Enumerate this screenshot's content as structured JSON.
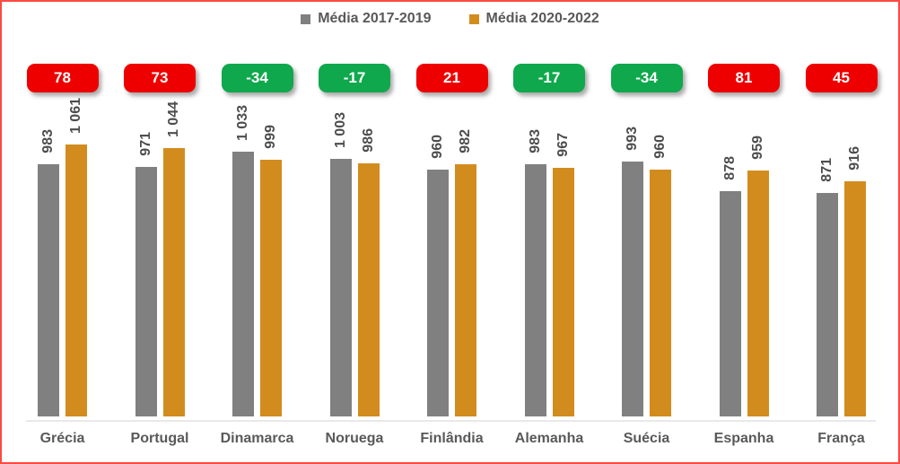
{
  "frame": {
    "border_color": "#fb4a42",
    "background": "#ffffff"
  },
  "legend": {
    "items": [
      {
        "label": "Média 2017-2019",
        "color": "#808080"
      },
      {
        "label": "Média 2020-2022",
        "color": "#d28c1e"
      }
    ]
  },
  "chart_data": {
    "type": "bar",
    "title": "",
    "categories": [
      "Grécia",
      "Portugal",
      "Dinamarca",
      "Noruega",
      "Finlândia",
      "Alemanha",
      "Suécia",
      "Espanha",
      "França"
    ],
    "series": [
      {
        "name": "Média 2017-2019",
        "color": "#808080",
        "values": [
          983,
          971,
          1033,
          1003,
          960,
          983,
          993,
          878,
          871
        ],
        "labels": [
          "983",
          "971",
          "1 033",
          "1 003",
          "960",
          "983",
          "993",
          "878",
          "871"
        ]
      },
      {
        "name": "Média 2020-2022",
        "color": "#d28c1e",
        "values": [
          1061,
          1044,
          999,
          986,
          982,
          967,
          960,
          959,
          916
        ],
        "labels": [
          "1 061",
          "1 044",
          "999",
          "986",
          "982",
          "967",
          "960",
          "959",
          "916"
        ]
      }
    ],
    "difference_badges": {
      "values": [
        "78",
        "73",
        "-34",
        "-17",
        "21",
        "-17",
        "-34",
        "81",
        "45"
      ],
      "positive_color": "#ee0000",
      "negative_color": "#0fa84c",
      "text_color": "#ffffff"
    },
    "ylim": [
      0,
      1100
    ],
    "grid": false,
    "legend_position": "top",
    "value_label_rotation": 90,
    "axis_line_color": "#e9e9e9",
    "xlabel": "",
    "ylabel": ""
  }
}
